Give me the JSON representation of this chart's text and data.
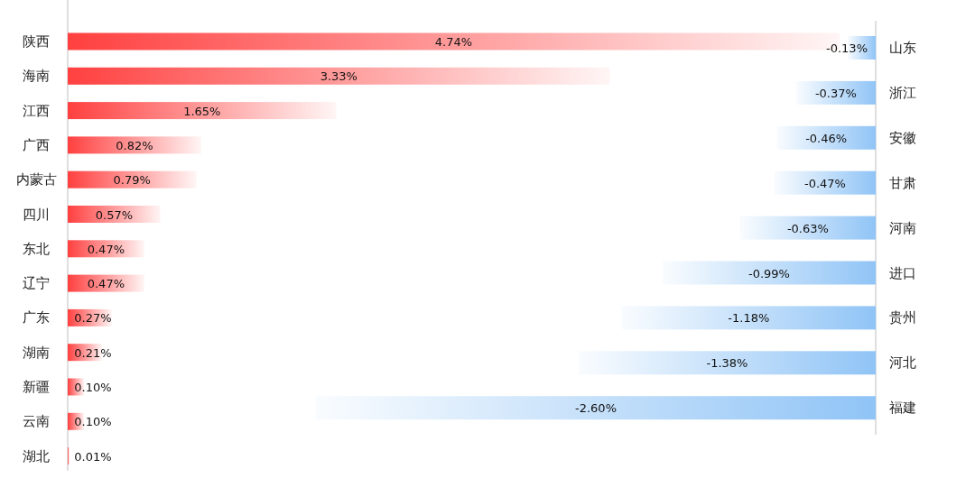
{
  "chart_data": [
    {
      "type": "bar",
      "orientation": "horizontal",
      "color": "#ff4040",
      "categories": [
        "陕西",
        "海南",
        "江西",
        "广西",
        "内蒙古",
        "四川",
        "东北",
        "辽宁",
        "广东",
        "湖南",
        "新疆",
        "云南",
        "湖北"
      ],
      "values": [
        4.74,
        3.33,
        1.65,
        0.82,
        0.79,
        0.57,
        0.47,
        0.47,
        0.27,
        0.21,
        0.1,
        0.1,
        0.01
      ],
      "value_labels": [
        "4.74%",
        "3.33%",
        "1.65%",
        "0.82%",
        "0.79%",
        "0.57%",
        "0.47%",
        "0.47%",
        "0.27%",
        "0.21%",
        "0.10%",
        "0.10%",
        "0.01%"
      ]
    },
    {
      "type": "bar",
      "orientation": "horizontal",
      "color": "#90c4f6",
      "categories": [
        "山东",
        "浙江",
        "安徽",
        "甘肃",
        "河南",
        "进口",
        "贵州",
        "河北",
        "福建"
      ],
      "values": [
        -0.13,
        -0.37,
        -0.46,
        -0.47,
        -0.63,
        -0.99,
        -1.18,
        -1.38,
        -2.6
      ],
      "value_labels": [
        "-0.13%",
        "-0.37%",
        "-0.46%",
        "-0.47%",
        "-0.63%",
        "-0.99%",
        "-1.18%",
        "-1.38%",
        "-2.60%"
      ]
    }
  ]
}
